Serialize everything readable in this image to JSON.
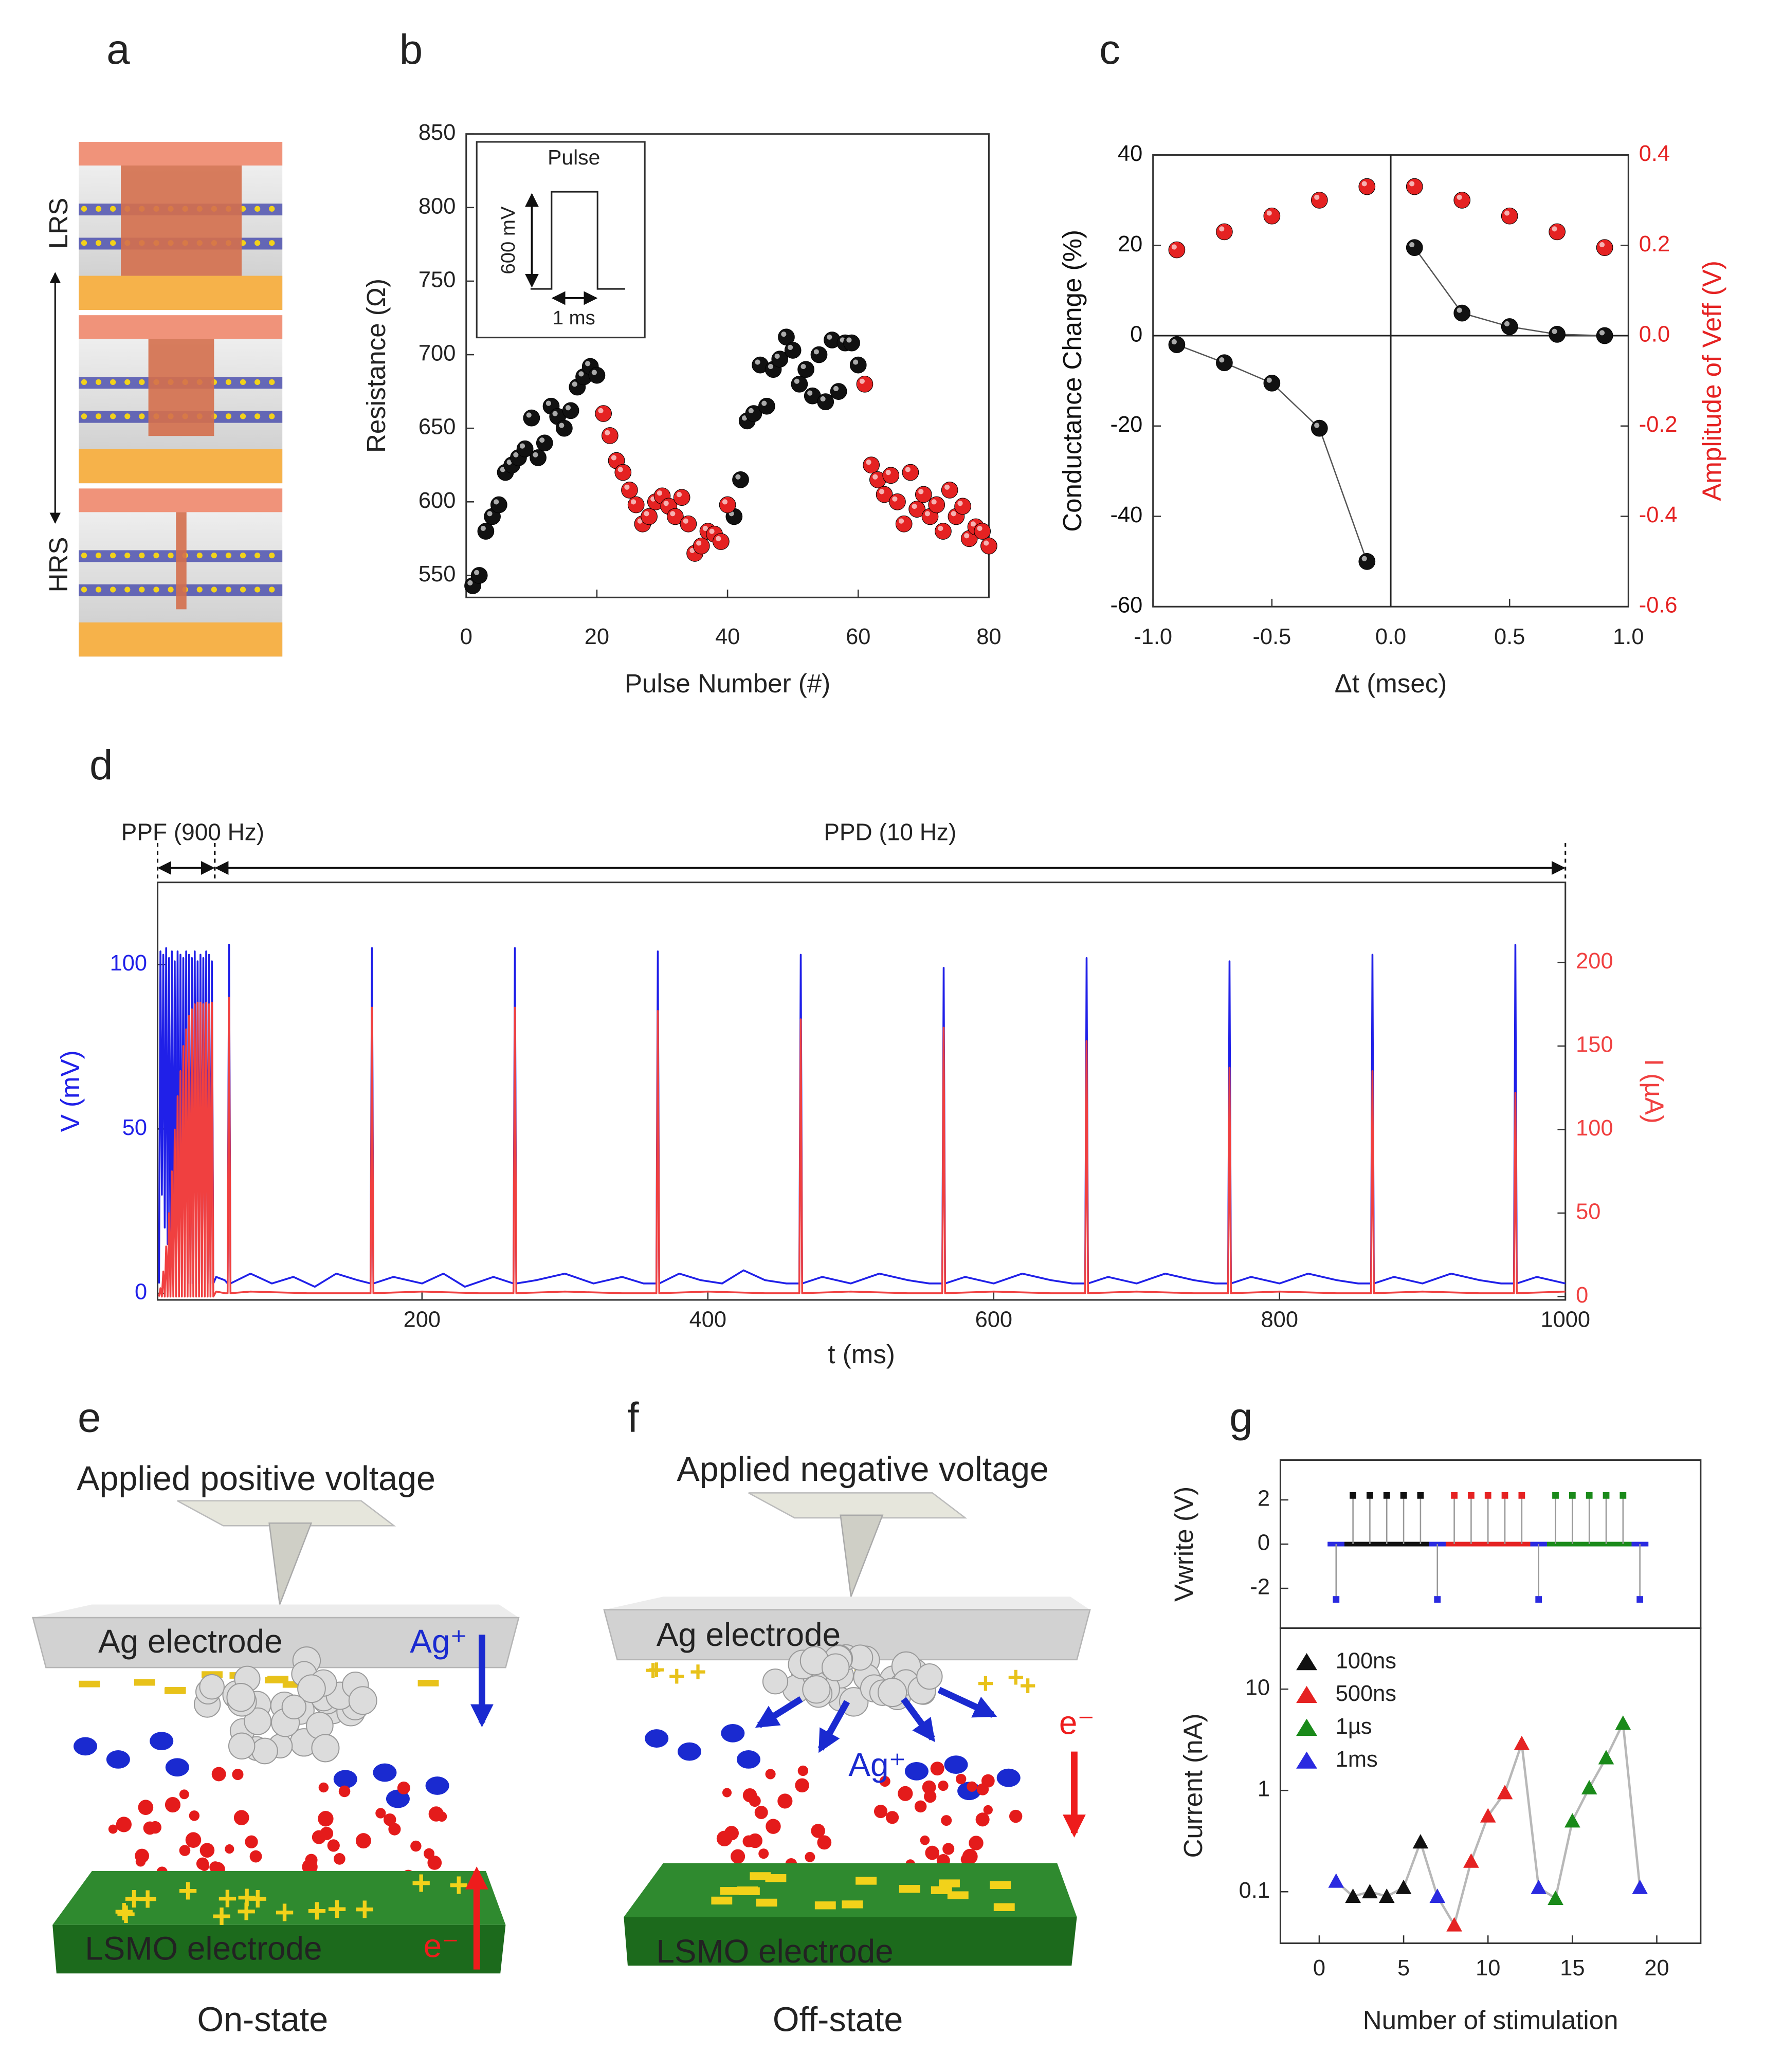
{
  "panel_labels": [
    "a",
    "b",
    "c",
    "d",
    "e",
    "f",
    "g"
  ],
  "figure_a": {
    "top_label": "LRS",
    "bottom_label": "HRS"
  },
  "figure_e": {
    "title": "Applied positive voltage",
    "top_electrode": "Ag electrode",
    "ion": "Ag⁺",
    "bottom_electrode": "LSMO electrode",
    "carrier": "e⁻",
    "caption": "On-state"
  },
  "figure_f": {
    "title": "Applied negative voltage",
    "top_electrode": "Ag electrode",
    "ion": "Ag⁺",
    "bottom_electrode": "LSMO electrode",
    "carrier": "e⁻",
    "caption": "Off-state"
  },
  "chart_data": [
    {
      "type": "scatter",
      "x_label": "Pulse Number (#)",
      "y_label": "Resistance (Ω)",
      "xlim": [
        0,
        80
      ],
      "ylim": [
        535,
        850
      ],
      "xticks": [
        0,
        20,
        40,
        60,
        80
      ],
      "yticks": [
        550,
        600,
        650,
        700,
        750,
        800,
        850
      ],
      "inset": {
        "title": "Pulse",
        "height_label": "600 mV",
        "width_label": "1 ms"
      },
      "series": [
        {
          "color": "#111111",
          "x": [
            1,
            2,
            3,
            4,
            5,
            6,
            7,
            8,
            9,
            10,
            11,
            12,
            13,
            14,
            15,
            16,
            17,
            18,
            19,
            20,
            41,
            42,
            43,
            44,
            45,
            46,
            47,
            48,
            49,
            50,
            51,
            52,
            53,
            54,
            55,
            56,
            57,
            58,
            59,
            60
          ],
          "values": [
            543,
            550,
            580,
            590,
            598,
            620,
            625,
            630,
            636,
            657,
            630,
            640,
            665,
            658,
            650,
            662,
            678,
            685,
            692,
            686,
            590,
            615,
            655,
            660,
            693,
            665,
            690,
            697,
            712,
            703,
            680,
            690,
            672,
            700,
            668,
            710,
            675,
            708,
            708,
            693
          ]
        },
        {
          "color": "#e52222",
          "x": [
            21,
            22,
            23,
            24,
            25,
            26,
            27,
            28,
            29,
            30,
            31,
            32,
            33,
            34,
            35,
            36,
            37,
            38,
            39,
            40,
            61,
            62,
            63,
            64,
            65,
            66,
            67,
            68,
            69,
            70,
            71,
            72,
            73,
            74,
            75,
            76,
            77,
            78,
            79,
            80
          ],
          "values": [
            660,
            645,
            628,
            620,
            608,
            598,
            585,
            590,
            600,
            604,
            597,
            590,
            603,
            585,
            565,
            570,
            580,
            578,
            573,
            598,
            680,
            625,
            615,
            605,
            618,
            600,
            585,
            620,
            595,
            605,
            590,
            598,
            580,
            608,
            590,
            597,
            575,
            583,
            580,
            570
          ]
        }
      ]
    },
    {
      "type": "scatter",
      "x_label": "Δt (msec)",
      "y_label": "Conductance Change (%)",
      "y2_label": "Amplitude of Veff (V)",
      "xlim": [
        -1,
        1
      ],
      "ylim": [
        -60,
        40
      ],
      "y2lim": [
        -0.6,
        0.4
      ],
      "xticks": [
        {
          "value": -1,
          "label": "-1.0"
        },
        -0.5,
        {
          "value": 0,
          "label": "0.0"
        },
        0.5,
        {
          "value": 1,
          "label": "1.0"
        }
      ],
      "yticks": [
        -60,
        -40,
        -20,
        0,
        20,
        40
      ],
      "y2ticks": [
        -0.6,
        -0.4,
        -0.2,
        {
          "value": 0,
          "label": "0.0"
        },
        0.2,
        0.4
      ],
      "zero_lines": true,
      "axis_colors": true,
      "series": [
        {
          "color": "#111111",
          "line": true,
          "x": [
            -0.9,
            -0.7,
            -0.5,
            -0.3,
            -0.1
          ],
          "values": [
            -2,
            -6,
            -10.5,
            -20.5,
            -50
          ]
        },
        {
          "color": "#111111",
          "line": true,
          "x": [
            0.1,
            0.3,
            0.5,
            0.7,
            0.9
          ],
          "values": [
            19.5,
            5,
            2,
            0.3,
            0
          ]
        },
        {
          "color": "#e52222",
          "axis": "y2",
          "x": [
            -0.9,
            -0.7,
            -0.5,
            -0.3,
            -0.1,
            0.1,
            0.3,
            0.5,
            0.7,
            0.9
          ],
          "values": [
            0.19,
            0.23,
            0.265,
            0.3,
            0.33,
            0.33,
            0.3,
            0.265,
            0.23,
            0.195
          ]
        }
      ]
    },
    {
      "type": "line",
      "x_label": "t (ms)",
      "y_label": "V (mV)",
      "y2_label": "I (µA)",
      "xlim": [
        15,
        1000
      ],
      "ylim": [
        -2,
        125
      ],
      "y2lim": [
        -2,
        248
      ],
      "xticks": [
        200,
        400,
        600,
        800,
        1000
      ],
      "yticks": [
        0,
        50,
        100
      ],
      "y2ticks": [
        0,
        50,
        100,
        150,
        200
      ],
      "axis_colors": true,
      "spans": [
        {
          "label": "PPF (900 Hz)",
          "x": [
            15,
            55
          ]
        },
        {
          "label": "PPD (10 Hz)",
          "x": [
            55,
            1000
          ]
        }
      ],
      "series": [
        {
          "color": "#2020e8",
          "x": [
            16,
            17,
            18,
            19,
            20,
            21,
            22,
            23,
            24,
            25,
            26,
            27,
            28,
            29,
            30,
            31,
            32,
            33,
            34,
            35,
            36,
            37,
            38,
            39,
            40,
            41,
            42,
            43,
            44,
            45,
            46,
            47,
            48,
            49,
            50,
            51,
            52,
            53,
            54,
            56,
            62,
            64,
            65,
            66,
            80,
            95,
            110,
            125,
            140,
            155,
            164,
            165,
            166,
            180,
            200,
            215,
            230,
            250,
            264,
            265,
            266,
            280,
            300,
            320,
            340,
            355,
            364,
            365,
            366,
            380,
            395,
            410,
            425,
            440,
            455,
            464,
            465,
            466,
            480,
            500,
            520,
            540,
            555,
            564,
            565,
            566,
            580,
            600,
            620,
            640,
            655,
            664,
            665,
            666,
            680,
            700,
            720,
            740,
            755,
            764,
            765,
            766,
            780,
            800,
            820,
            840,
            855,
            864,
            865,
            866,
            880,
            900,
            920,
            940,
            955,
            964,
            965,
            966,
            980,
            1000
          ],
          "values": [
            3,
            104,
            30,
            103,
            20,
            105,
            15,
            102,
            10,
            104,
            8,
            101,
            6,
            104,
            5,
            103,
            4,
            102,
            4,
            104,
            3,
            103,
            3,
            102,
            3,
            104,
            3,
            101,
            3,
            103,
            3,
            102,
            3,
            104,
            3,
            103,
            3,
            101,
            3,
            5,
            4,
            3,
            106,
            3,
            6,
            3,
            5,
            2,
            6,
            4,
            3,
            105,
            3,
            5,
            3,
            6,
            2,
            5,
            3,
            105,
            3,
            4,
            6,
            3,
            5,
            3,
            3,
            104,
            3,
            6,
            4,
            3,
            7,
            4,
            3,
            3,
            103,
            3,
            5,
            3,
            6,
            4,
            3,
            3,
            99,
            3,
            5,
            3,
            6,
            4,
            3,
            3,
            102,
            3,
            5,
            3,
            6,
            4,
            3,
            3,
            101,
            3,
            5,
            3,
            6,
            4,
            3,
            3,
            103,
            3,
            5,
            3,
            6,
            4,
            3,
            3,
            106,
            3,
            5,
            3
          ]
        },
        {
          "color": "#f04040",
          "axis": "y2",
          "x": [
            16,
            17,
            18,
            19,
            20,
            21,
            22,
            23,
            24,
            25,
            26,
            27,
            28,
            29,
            30,
            31,
            32,
            33,
            34,
            35,
            36,
            37,
            38,
            39,
            40,
            41,
            42,
            43,
            44,
            45,
            46,
            47,
            48,
            49,
            50,
            51,
            52,
            53,
            54,
            56,
            62,
            64,
            65,
            66,
            80,
            120,
            164,
            165,
            166,
            200,
            240,
            264,
            265,
            266,
            300,
            340,
            364,
            365,
            366,
            400,
            440,
            464,
            465,
            466,
            500,
            540,
            564,
            565,
            566,
            600,
            640,
            664,
            665,
            666,
            700,
            740,
            764,
            765,
            766,
            800,
            840,
            864,
            865,
            866,
            900,
            940,
            964,
            965,
            966,
            1000
          ],
          "values": [
            0,
            5,
            0,
            15,
            0,
            30,
            0,
            50,
            0,
            75,
            0,
            100,
            0,
            120,
            0,
            135,
            0,
            150,
            0,
            160,
            0,
            168,
            0,
            172,
            0,
            175,
            0,
            176,
            0,
            176,
            0,
            175,
            0,
            176,
            0,
            175,
            0,
            176,
            0,
            3,
            2,
            2,
            179,
            2,
            3,
            2,
            2,
            173,
            2,
            3,
            2,
            2,
            173,
            2,
            3,
            2,
            2,
            171,
            2,
            3,
            2,
            2,
            166,
            2,
            3,
            2,
            2,
            161,
            2,
            3,
            2,
            2,
            153,
            2,
            3,
            2,
            2,
            137,
            2,
            3,
            2,
            2,
            135,
            2,
            3,
            2,
            2,
            122,
            2,
            3
          ]
        }
      ]
    },
    {
      "type": "stem",
      "y_label": "Vwrite (V)",
      "xlim": [
        -2.3,
        22.6
      ],
      "ylim": [
        -3.8,
        3.8
      ],
      "yticks": [
        -2,
        0,
        2
      ],
      "marker": "square",
      "series": [
        {
          "color": "#2a2ae0",
          "x": [
            1,
            7,
            13,
            19
          ],
          "values": [
            -2.5,
            -2.5,
            -2.5,
            -2.5
          ]
        },
        {
          "color": "#111111",
          "x": [
            2,
            3,
            4,
            5,
            6
          ],
          "values": [
            2.2,
            2.2,
            2.2,
            2.2,
            2.2
          ]
        },
        {
          "color": "#e52222",
          "x": [
            8,
            9,
            10,
            11,
            12
          ],
          "values": [
            2.2,
            2.2,
            2.2,
            2.2,
            2.2
          ]
        },
        {
          "color": "#1a8a1a",
          "x": [
            14,
            15,
            16,
            17,
            18
          ],
          "values": [
            2.2,
            2.2,
            2.2,
            2.2,
            2.2
          ]
        }
      ]
    },
    {
      "type": "scatter",
      "log_y": true,
      "marker": "triangle",
      "connect": "#b8b8b8",
      "legend": "upper left",
      "x_label": "Number of stimulation",
      "y_label": "Current (nA)",
      "xlim": [
        -2.3,
        22.6
      ],
      "ylim": [
        0.031,
        40
      ],
      "xticks": [
        0,
        5,
        10,
        15,
        20
      ],
      "yticks": [
        0.1,
        1,
        10
      ],
      "series": [
        {
          "name": "100ns",
          "color": "#111111",
          "x": [
            2,
            3,
            4,
            5,
            6
          ],
          "values": [
            0.09,
            0.1,
            0.09,
            0.11,
            0.31
          ]
        },
        {
          "name": "500ns",
          "color": "#e52222",
          "x": [
            8,
            9,
            10,
            11,
            12
          ],
          "values": [
            0.047,
            0.2,
            0.56,
            0.95,
            2.9
          ]
        },
        {
          "name": "1µs",
          "color": "#1a8a1a",
          "x": [
            14,
            15,
            16,
            17,
            18
          ],
          "values": [
            0.086,
            0.5,
            1.06,
            2.1,
            4.6
          ]
        },
        {
          "name": "1ms",
          "color": "#2a2ae0",
          "x": [
            1,
            7,
            13,
            19
          ],
          "values": [
            0.127,
            0.09,
            0.11,
            0.11
          ]
        }
      ]
    }
  ]
}
